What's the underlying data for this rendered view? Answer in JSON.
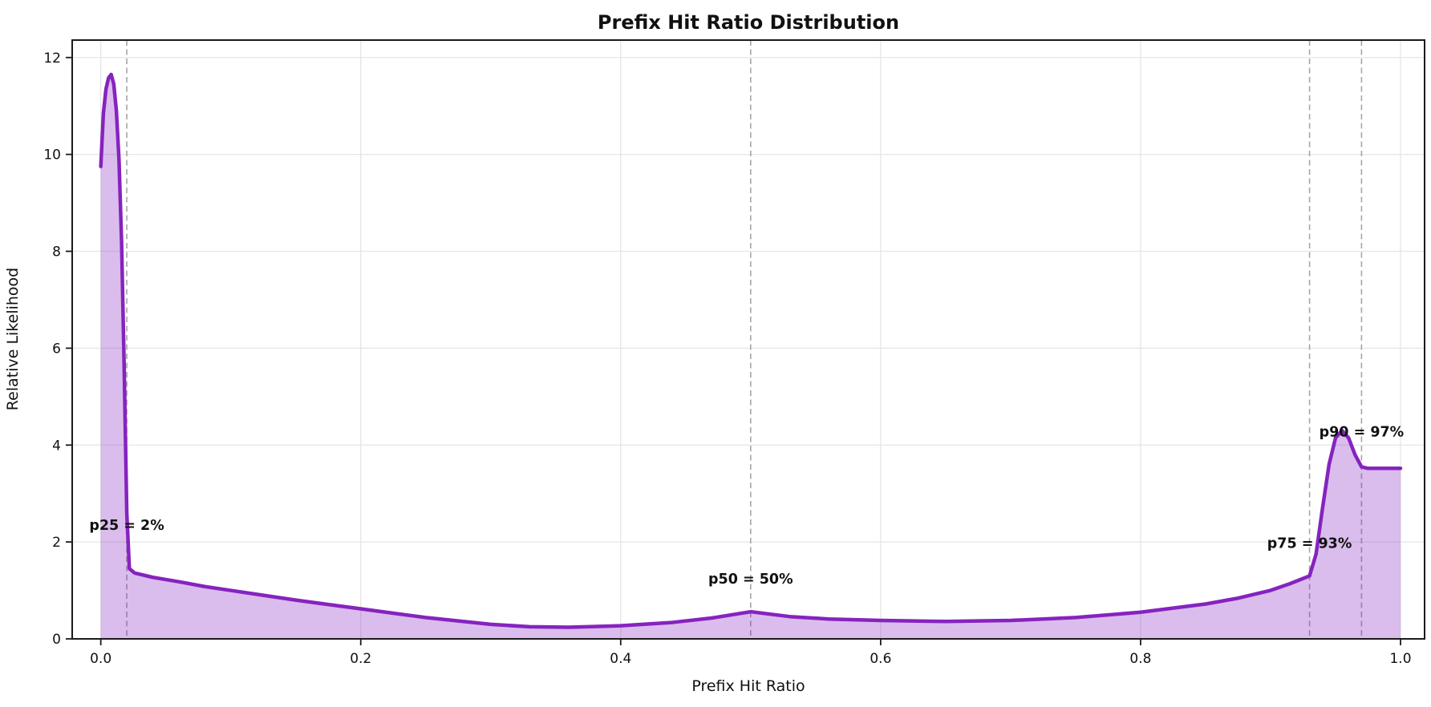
{
  "figure": {
    "kind": "matplotlib-style density plot"
  },
  "colors": {
    "line": "#8623bf",
    "fill": "rgba(134, 35, 191, 0.30)",
    "annotation": "#4a1585",
    "grid": "#e5e5e5",
    "dashed_line": "#a6a6a6",
    "spine": "#1a1a1a",
    "text": "#111111",
    "background": "#ffffff"
  },
  "chart_data": {
    "type": "area",
    "title": "Prefix Hit Ratio Distribution",
    "xlabel": "Prefix Hit Ratio",
    "ylabel": "Relative Likelihood",
    "xlim": [
      -0.022,
      1.0185
    ],
    "ylim": [
      0,
      12.36
    ],
    "grid": true,
    "xticks": {
      "values": [
        0.0,
        0.2,
        0.4,
        0.6,
        0.8,
        1.0
      ],
      "labels": [
        "0.0",
        "0.2",
        "0.4",
        "0.6",
        "0.8",
        "1.0"
      ]
    },
    "yticks": {
      "values": [
        0,
        2,
        4,
        6,
        8,
        10,
        12
      ],
      "labels": [
        "0",
        "2",
        "4",
        "6",
        "8",
        "10",
        "12"
      ]
    },
    "series": [
      {
        "name": "prefix-hit-ratio-density",
        "x": [
          0.0,
          0.002,
          0.004,
          0.006,
          0.008,
          0.01,
          0.012,
          0.014,
          0.016,
          0.018,
          0.02,
          0.022,
          0.026,
          0.04,
          0.06,
          0.08,
          0.1,
          0.125,
          0.15,
          0.175,
          0.2,
          0.225,
          0.25,
          0.275,
          0.3,
          0.33,
          0.36,
          0.4,
          0.44,
          0.47,
          0.5,
          0.53,
          0.56,
          0.6,
          0.65,
          0.7,
          0.75,
          0.8,
          0.85,
          0.875,
          0.9,
          0.915,
          0.93,
          0.935,
          0.94,
          0.945,
          0.95,
          0.955,
          0.96,
          0.965,
          0.97,
          0.975,
          1.0
        ],
        "y": [
          9.75,
          10.85,
          11.35,
          11.58,
          11.65,
          11.45,
          10.9,
          9.9,
          8.2,
          5.6,
          2.6,
          1.45,
          1.36,
          1.27,
          1.18,
          1.08,
          1.0,
          0.9,
          0.8,
          0.71,
          0.62,
          0.53,
          0.44,
          0.37,
          0.3,
          0.25,
          0.24,
          0.27,
          0.34,
          0.43,
          0.56,
          0.46,
          0.41,
          0.38,
          0.36,
          0.38,
          0.44,
          0.55,
          0.72,
          0.84,
          1.0,
          1.14,
          1.3,
          1.75,
          2.7,
          3.6,
          4.15,
          4.3,
          4.15,
          3.8,
          3.55,
          3.52,
          3.52
        ]
      }
    ],
    "annotations": [
      {
        "id": "p25",
        "label": "p25 = 2%",
        "x": 0.02,
        "y": 2.35
      },
      {
        "id": "p50",
        "label": "p50 = 50%",
        "x": 0.5,
        "y": 1.24
      },
      {
        "id": "p75",
        "label": "p75 = 93%",
        "x": 0.93,
        "y": 1.98
      },
      {
        "id": "p90",
        "label": "p90 = 97%",
        "x": 0.97,
        "y": 4.28
      }
    ],
    "percentile_lines": [
      0.02,
      0.5,
      0.93,
      0.97
    ],
    "legend": null
  }
}
